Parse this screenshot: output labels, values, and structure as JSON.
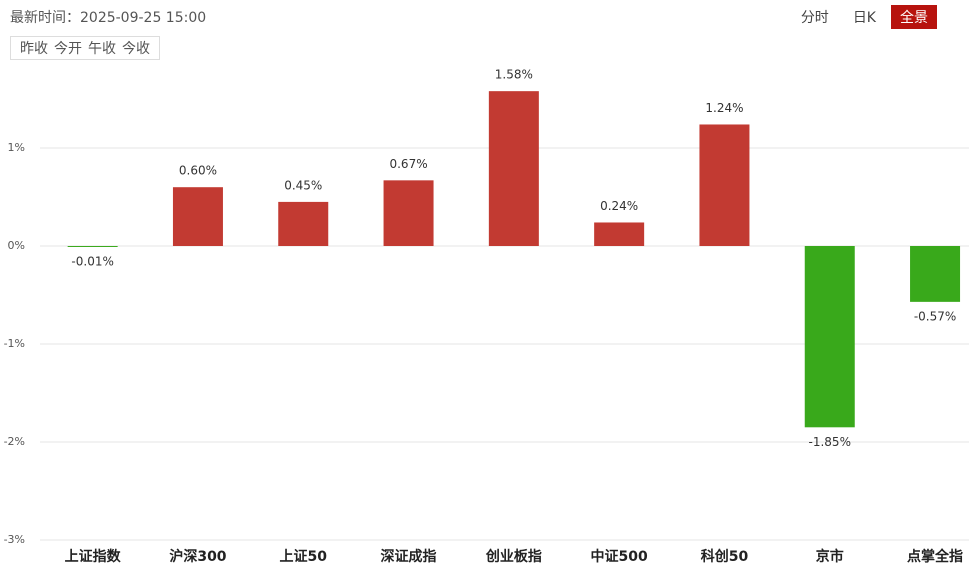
{
  "header": {
    "time": "最新时间：2025-09-25 15:00",
    "tabs": [
      "分时",
      "日K",
      "全景"
    ],
    "options": [
      "昨收",
      "今开",
      "午收",
      "今收"
    ]
  },
  "chart_data": {
    "type": "bar",
    "categories": [
      "上证指数",
      "沪深300",
      "上证50",
      "深证成指",
      "创业板指",
      "中证500",
      "科创50",
      "京市",
      "点掌全指"
    ],
    "values": [
      -0.01,
      0.6,
      0.45,
      0.67,
      1.58,
      0.24,
      1.24,
      -1.85,
      -0.57
    ],
    "value_labels": [
      "-0.01%",
      "0.60%",
      "0.45%",
      "0.67%",
      "1.58%",
      "0.24%",
      "1.24%",
      "-1.85%",
      "-0.57%"
    ],
    "colors": {
      "up": "#c23a32",
      "down": "#39a91b"
    },
    "ylim": [
      -3,
      2
    ],
    "yticks": [
      {
        "value": 1,
        "label": "1%"
      },
      {
        "value": 0,
        "label": "0%"
      },
      {
        "value": -1,
        "label": "-1%"
      },
      {
        "value": -2,
        "label": "-2%"
      },
      {
        "value": -3,
        "label": "-3%"
      }
    ],
    "grid": true
  }
}
